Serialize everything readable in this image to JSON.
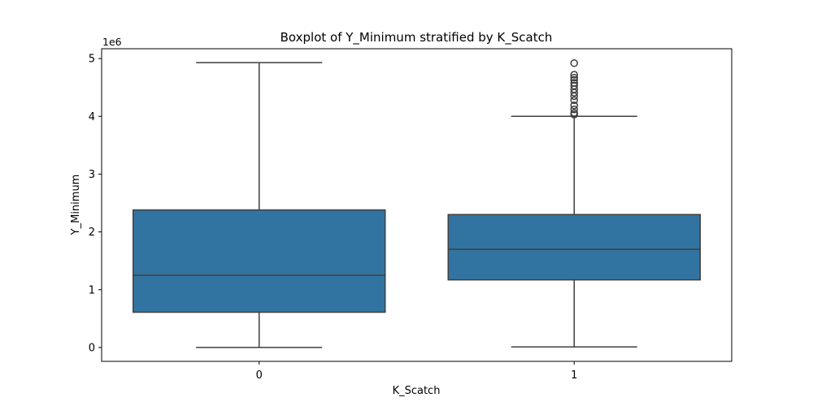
{
  "chart_data": {
    "type": "box",
    "title": "Boxplot of Y_Minimum stratified by K_Scatch",
    "xlabel": "K_Scatch",
    "ylabel": "Y_Minimum",
    "y_scale_label": "1e6",
    "ylim": [
      -0.24,
      5.17
    ],
    "y_ticks": [
      {
        "value": 0,
        "label": "0"
      },
      {
        "value": 1,
        "label": "1"
      },
      {
        "value": 2,
        "label": "2"
      },
      {
        "value": 3,
        "label": "3"
      },
      {
        "value": 4,
        "label": "4"
      },
      {
        "value": 5,
        "label": "5"
      }
    ],
    "categories": [
      "0",
      "1"
    ],
    "boxes": [
      {
        "category": "0",
        "whisker_low": 0.0,
        "q1": 0.61,
        "median": 1.25,
        "q3": 2.38,
        "whisker_high": 4.93,
        "outliers": []
      },
      {
        "category": "1",
        "whisker_low": 0.01,
        "q1": 1.17,
        "median": 1.7,
        "q3": 2.3,
        "whisker_high": 4.0,
        "outliers": [
          4.03,
          4.06,
          4.12,
          4.19,
          4.28,
          4.35,
          4.41,
          4.47,
          4.53,
          4.58,
          4.63,
          4.67,
          4.72,
          4.92
        ]
      }
    ],
    "colors": {
      "box_fill": "#3274a1",
      "line": "#3f3f3f",
      "axis": "#000000"
    },
    "grid": false,
    "legend": "none"
  }
}
